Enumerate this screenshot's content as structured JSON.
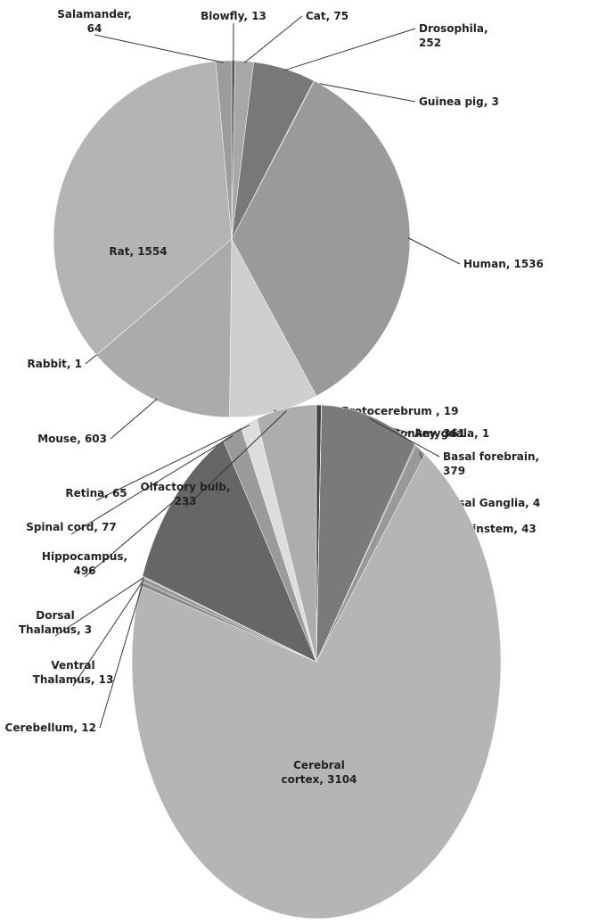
{
  "chart_data": [
    {
      "type": "pie",
      "values": [
        13,
        75,
        252,
        3,
        1536,
        361,
        603,
        1,
        1554,
        64
      ],
      "value_labels": [
        "Blowfly, 13",
        "Cat, 75",
        "Drosophila,\n252",
        "Guinea pig, 3",
        "Human, 1536",
        "Monkey, 361",
        "Mouse, 603",
        "Rabbit, 1",
        "Rat, 1554",
        "Salamander,\n64"
      ],
      "colors": [
        "#555555",
        "#a8a8a8",
        "#787878",
        "#8a8a8a",
        "#9a9a9a",
        "#cfcfcf",
        "#ababab",
        "#bdbdbd",
        "#b4b4b4",
        "#9c9c9c"
      ]
    },
    {
      "type": "pie",
      "values": [
        19,
        1,
        379,
        4,
        43,
        3104,
        12,
        13,
        3,
        496,
        77,
        65,
        233
      ],
      "value_labels": [
        "Protocerebrum , 19",
        "Amygdala, 1",
        "Basal forebrain,\n379",
        "Basal Ganglia, 4",
        "Brainstem, 43",
        "Cerebral\ncortex, 3104",
        "Cerebellum, 12",
        "Ventral\nThalamus, 13",
        "Dorsal\nThalamus, 3",
        "Hippocampus,\n496",
        "Spinal cord, 77",
        "Retina, 65",
        "Olfactory bulb,\n233"
      ],
      "colors": [
        "#444444",
        "#555555",
        "#7a7a7a",
        "#888888",
        "#999999",
        "#b5b5b5",
        "#888888",
        "#999999",
        "#aaaaaa",
        "#666666",
        "#9a9a9a",
        "#dddddd",
        "#adadad"
      ]
    }
  ]
}
